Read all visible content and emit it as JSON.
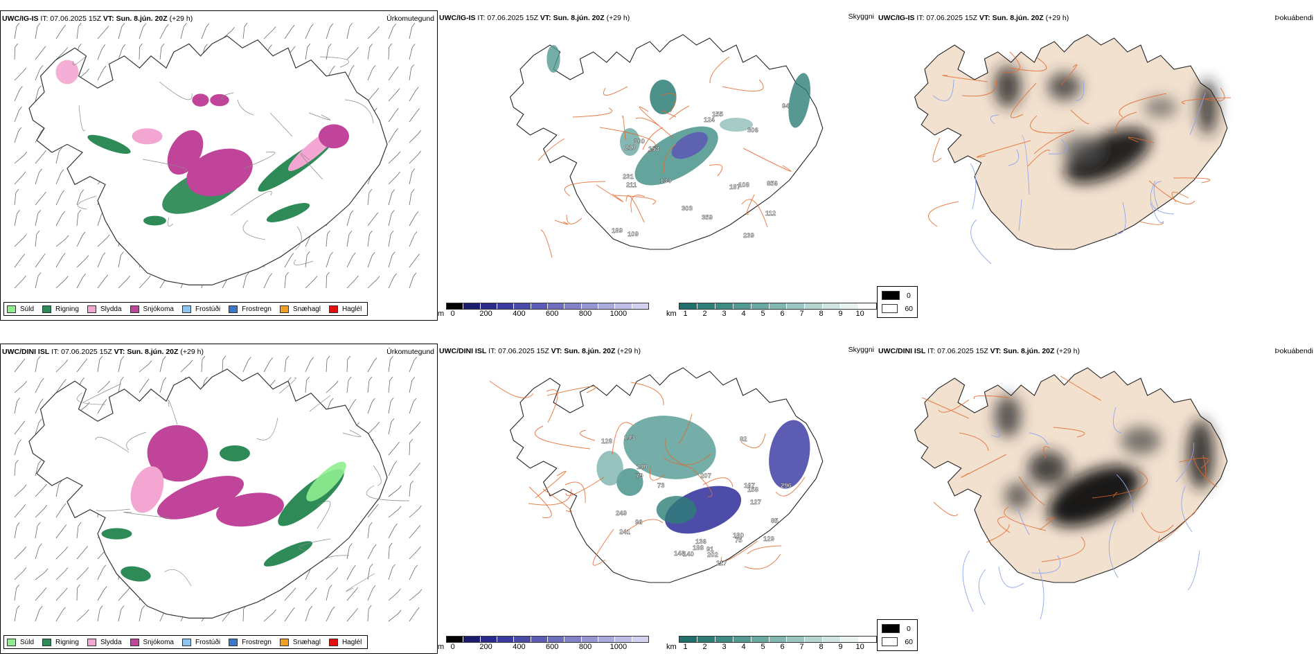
{
  "rows": [
    {
      "precip": {
        "model": "UWC/IG-IS",
        "it": "IT: 07.06.2025 15Z",
        "vt_label": "VT:",
        "vt": "Sun. 8.jún. 20Z",
        "lead": "(+29 h)",
        "variable": "Úrkomutegund"
      },
      "vis": {
        "model": "UWC/IG-IS",
        "it": "IT: 07.06.2025 15Z",
        "vt_label": "VT:",
        "vt": "Sun. 8.jún. 20Z",
        "lead": "(+29 h)",
        "variable": "Skyggni",
        "heights": [
          "124",
          "187",
          "134",
          "231",
          "300",
          "303",
          "306",
          "112",
          "359",
          "856",
          "210",
          "94",
          "239",
          "153",
          "189",
          "108",
          "155",
          "211",
          "109"
        ]
      },
      "fog": {
        "model": "UWC/IG-IS",
        "it": "IT: 07.06.2025 15Z",
        "vt_label": "VT:",
        "vt": "Sun. 8.jún. 20Z",
        "lead": "(+29 h)",
        "variable": "Þokuábendi"
      }
    },
    {
      "precip": {
        "model": "UWC/DINI ISL",
        "it": "IT: 07.06.2025 15Z",
        "vt_label": "VT:",
        "vt": "Sun. 8.jún. 20Z",
        "lead": "(+29 h)",
        "variable": "Úrkomutegund"
      },
      "vis": {
        "model": "UWC/DINI ISL",
        "it": "IT: 07.06.2025 15Z",
        "vt_label": "VT:",
        "vt": "Sun. 8.jún. 20Z",
        "lead": "(+29 h)",
        "variable": "Skyggni",
        "heights": [
          "148",
          "136",
          "207",
          "128",
          "296",
          "241",
          "188",
          "249",
          "167",
          "140",
          "96",
          "129",
          "140",
          "117",
          "82",
          "202",
          "180",
          "75",
          "85",
          "158",
          "143",
          "127",
          "79",
          "73",
          "91"
        ]
      },
      "fog": {
        "model": "UWC/DINI ISL",
        "it": "IT: 07.06.2025 15Z",
        "vt_label": "VT:",
        "vt": "Sun. 8.jún. 20Z",
        "lead": "(+29 h)",
        "variable": "Þokuábendi"
      }
    }
  ],
  "precip_legend": [
    {
      "label": "Súld",
      "color": "#90ee90"
    },
    {
      "label": "Rigning",
      "color": "#2e8b57"
    },
    {
      "label": "Slydda",
      "color": "#f4a6d3"
    },
    {
      "label": "Snjókoma",
      "color": "#c0449a"
    },
    {
      "label": "Frostúði",
      "color": "#8ec5f0"
    },
    {
      "label": "Frostregn",
      "color": "#3c78c8"
    },
    {
      "label": "Snæhagl",
      "color": "#f0a020"
    },
    {
      "label": "Haglél",
      "color": "#e01010"
    }
  ],
  "cloudbase_bar": {
    "unit": "m",
    "ticks": [
      "0",
      "200",
      "400",
      "600",
      "800",
      "1000"
    ],
    "colors": [
      "#000000",
      "#1c1c6e",
      "#2a2a8c",
      "#3a3aa0",
      "#4a4aaa",
      "#5c5cb4",
      "#6e6ebe",
      "#8282c8",
      "#9696d2",
      "#aaaadc",
      "#bebee6",
      "#d2d2f0"
    ]
  },
  "visibility_bar": {
    "unit": "km",
    "ticks": [
      "1",
      "2",
      "3",
      "4",
      "5",
      "6",
      "7",
      "8",
      "9",
      "10"
    ],
    "colors": [
      "#1f6f6a",
      "#2e7e77",
      "#3f8c85",
      "#539a93",
      "#6aa8a2",
      "#82b7b1",
      "#9cc6c1",
      "#b6d5d1",
      "#d0e4e1",
      "#e8f2f0",
      "#ffffff"
    ]
  },
  "fog_legend": [
    {
      "label": "0",
      "color": "#000000"
    },
    {
      "label": "60",
      "color": "#ffffff"
    }
  ],
  "colors": {
    "land_fog": "#f3e1d0",
    "road": "#e36a2c",
    "rivers": "#8fa5ee",
    "coast": "#222222"
  }
}
